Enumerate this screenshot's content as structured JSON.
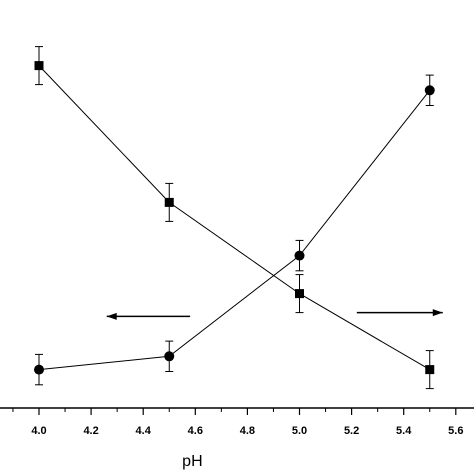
{
  "chart_data": {
    "type": "line",
    "xlabel": "pH",
    "ylabel": "",
    "title": "",
    "xlim": [
      3.95,
      5.6
    ],
    "ylim": [
      0,
      100
    ],
    "x_ticks": [
      "4.0",
      "4.2",
      "4.4",
      "4.6",
      "4.8",
      "5.0",
      "5.2",
      "5.4",
      "5.6"
    ],
    "grid": false,
    "legend": "none",
    "series": [
      {
        "marker": "square",
        "x": [
          4.0,
          4.5,
          5.0,
          5.5
        ],
        "y": [
          88,
          52,
          28,
          8
        ],
        "err": [
          5,
          5,
          5,
          5
        ],
        "axis": "left"
      },
      {
        "marker": "circle",
        "x": [
          4.0,
          4.5,
          5.0,
          5.5
        ],
        "y": [
          8,
          11.5,
          38,
          81.5
        ],
        "err": [
          4,
          4,
          4,
          4
        ],
        "axis": "right"
      }
    ],
    "annotations": [
      {
        "type": "arrow",
        "direction": "left",
        "x_from": 4.58,
        "x_to": 4.26,
        "y": 22
      },
      {
        "type": "arrow",
        "direction": "right",
        "x_from": 5.22,
        "x_to": 5.55,
        "y": 23
      }
    ]
  },
  "colors": {
    "line": "#000000",
    "marker": "#000000",
    "background": "#ffffff"
  }
}
